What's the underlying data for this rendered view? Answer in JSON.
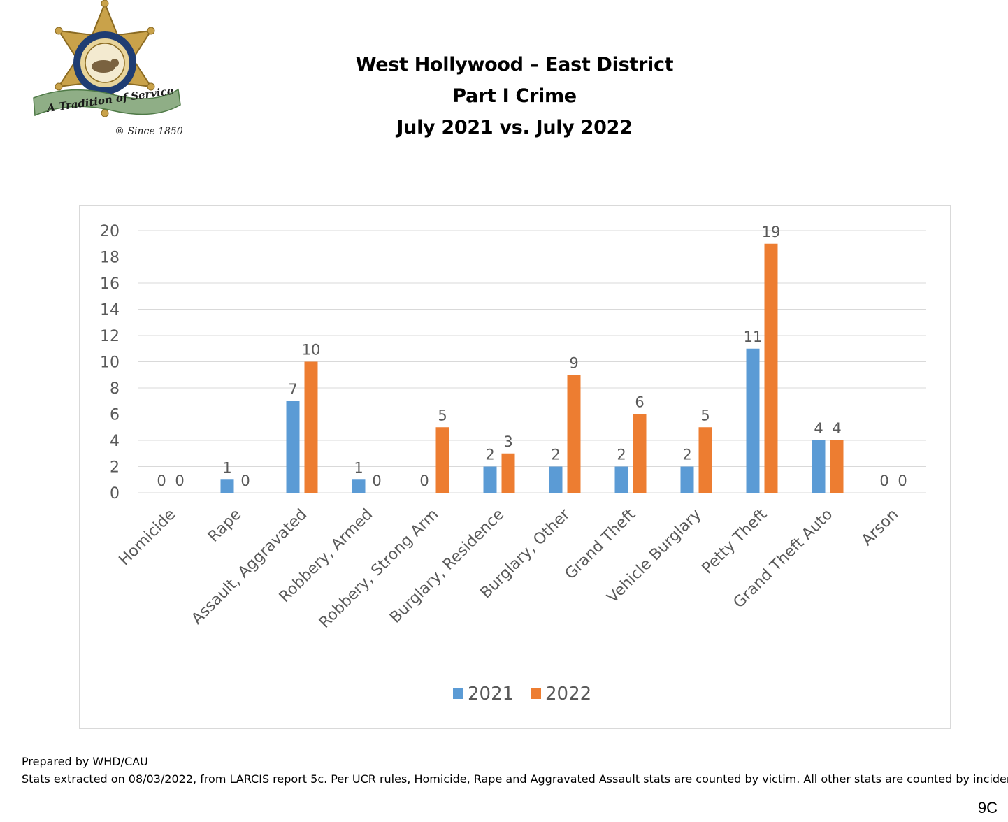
{
  "logo": {
    "ribbon_text": "A Tradition of Service",
    "since_text": "® Since 1850",
    "badge_top_text": "SHERIFF",
    "badge_bottom_text": "LOS ANGELES COUNTY",
    "gold_color": "#c9a24a",
    "ribbon_color": "#8fae86"
  },
  "title": {
    "line1": "West Hollywood – East District",
    "line2": "Part I Crime",
    "line3": "July 2021 vs. July 2022"
  },
  "chart_data": {
    "type": "bar",
    "categories": [
      "Homicide",
      "Rape",
      "Assault, Aggravated",
      "Robbery, Armed",
      "Robbery, Strong Arm",
      "Burglary, Residence",
      "Burglary, Other",
      "Grand Theft",
      "Vehicle Burglary",
      "Petty Theft",
      "Grand Theft Auto",
      "Arson"
    ],
    "series": [
      {
        "name": "2021",
        "color": "#5b9bd5",
        "values": [
          0,
          1,
          7,
          1,
          0,
          2,
          2,
          2,
          2,
          11,
          4,
          0
        ]
      },
      {
        "name": "2022",
        "color": "#ed7d31",
        "values": [
          0,
          0,
          10,
          0,
          5,
          3,
          9,
          6,
          5,
          19,
          4,
          0
        ]
      }
    ],
    "yticks": [
      0,
      2,
      4,
      6,
      8,
      10,
      12,
      14,
      16,
      18,
      20
    ],
    "ylim": [
      0,
      20
    ],
    "grid": true,
    "legend": "bottom-center",
    "data_labels": true,
    "title": "",
    "xlabel": "",
    "ylabel": ""
  },
  "footer": {
    "prepared_by": "Prepared by WHD/CAU",
    "note": "Stats extracted on 08/03/2022, from LARCIS report 5c. Per UCR rules, Homicide, Rape and Aggravated Assault stats are counted by victim. All other stats are counted by incident.",
    "page_number": "9C"
  }
}
